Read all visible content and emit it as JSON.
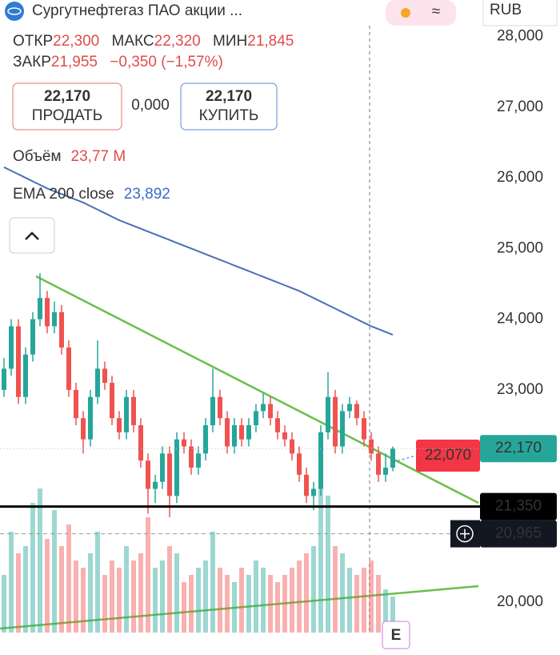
{
  "header": {
    "title": "Сургутнефтегаз ПАО акции ...",
    "currency": "RUB",
    "stats": [
      {
        "label": "ОТКР",
        "value": "22,300"
      },
      {
        "label": "МАКС",
        "value": "22,320"
      },
      {
        "label": "МИН",
        "value": "21,845"
      },
      {
        "label": "ЗАКР",
        "value": "21,955"
      }
    ],
    "change": "−0,350 (−1,57%)",
    "sell": {
      "price": "22,170",
      "label": "ПРОДАТЬ"
    },
    "spread": "0,000",
    "buy": {
      "price": "22,170",
      "label": "КУПИТЬ"
    },
    "volume": {
      "label": "Объём",
      "value": "23,77 M"
    },
    "ema": {
      "label": "EMA 200 close",
      "value": "23,892"
    },
    "badge": "E"
  },
  "chart_data": {
    "type": "candlestick",
    "up_color": "#26a69a",
    "down_color": "#ef5350",
    "ema_color": "#4a6fb5",
    "open": [
      23000,
      23300,
      23900,
      22900,
      23500,
      24000,
      24300,
      23900,
      24100,
      23600,
      23000,
      22600,
      22300,
      22900,
      23300,
      23100,
      22600,
      22400,
      22900,
      22500,
      22000,
      21600,
      21700,
      22100,
      21500,
      22300,
      22200,
      21900,
      22100,
      22500,
      22900,
      22600,
      22200,
      22500,
      22300,
      22500,
      22700,
      22800,
      22600,
      22400,
      22300,
      22100,
      21800,
      21500,
      21600,
      22400,
      22900,
      22200,
      22700,
      22800,
      22600,
      22300,
      22100,
      21800,
      21900
    ],
    "high": [
      23450,
      24000,
      24000,
      23600,
      24100,
      24650,
      24400,
      24250,
      24200,
      23700,
      23100,
      22700,
      23000,
      23700,
      23400,
      23200,
      22700,
      23000,
      23000,
      22600,
      22100,
      21800,
      22200,
      22200,
      22400,
      22400,
      22300,
      22200,
      22600,
      23300,
      23000,
      22700,
      22600,
      22600,
      22600,
      22800,
      22950,
      22900,
      22700,
      22500,
      22400,
      22200,
      21900,
      21700,
      22500,
      23250,
      23000,
      22800,
      22900,
      22850,
      22700,
      22400,
      22200,
      22100,
      22200
    ],
    "low": [
      22900,
      23200,
      22800,
      22800,
      23400,
      23900,
      23800,
      23800,
      23500,
      22900,
      22500,
      22100,
      22200,
      22800,
      23000,
      22500,
      22300,
      22300,
      22400,
      21900,
      21250,
      21400,
      21600,
      21200,
      21400,
      22100,
      21800,
      21800,
      22000,
      22400,
      22500,
      22100,
      22100,
      22200,
      22200,
      22400,
      22600,
      22500,
      22300,
      22200,
      22000,
      21700,
      21400,
      21300,
      21500,
      22300,
      22100,
      22100,
      22600,
      22500,
      22200,
      22000,
      21700,
      21700,
      21850
    ],
    "close": [
      23300,
      23900,
      22900,
      23500,
      24000,
      24300,
      23900,
      24100,
      23600,
      23000,
      22600,
      22300,
      22900,
      23300,
      23100,
      22600,
      22400,
      22900,
      22500,
      22000,
      21600,
      21700,
      22100,
      21500,
      22300,
      22200,
      21900,
      22100,
      22500,
      22900,
      22600,
      22200,
      22500,
      22300,
      22500,
      22700,
      22800,
      22600,
      22400,
      22300,
      22100,
      21800,
      21500,
      21600,
      22400,
      22900,
      22200,
      22700,
      22800,
      22600,
      22300,
      22100,
      21800,
      21900,
      22170
    ],
    "volume": [
      40,
      70,
      55,
      60,
      90,
      100,
      65,
      85,
      60,
      75,
      50,
      45,
      55,
      70,
      40,
      50,
      45,
      60,
      50,
      55,
      80,
      45,
      50,
      60,
      55,
      35,
      40,
      45,
      50,
      70,
      45,
      40,
      35,
      45,
      40,
      50,
      45,
      40,
      35,
      40,
      45,
      50,
      55,
      60,
      100,
      95,
      60,
      55,
      45,
      40,
      45,
      50,
      40,
      30,
      25
    ],
    "ema": [
      26150,
      26100,
      26050,
      26000,
      25950,
      25900,
      25850,
      25810,
      25770,
      25730,
      25690,
      25650,
      25600,
      25550,
      25500,
      25450,
      25400,
      25360,
      25320,
      25280,
      25240,
      25200,
      25160,
      25120,
      25080,
      25040,
      25000,
      24960,
      24920,
      24880,
      24840,
      24800,
      24760,
      24720,
      24680,
      24640,
      24600,
      24560,
      24520,
      24480,
      24440,
      24400,
      24350,
      24300,
      24250,
      24200,
      24150,
      24100,
      24050,
      24000,
      23950,
      23900,
      23860,
      23820,
      23780
    ],
    "ylim": [
      19250,
      28515
    ],
    "yticks": [
      {
        "value": 20000,
        "label": "20,000"
      },
      {
        "value": 23000,
        "label": "23,000"
      },
      {
        "value": 24000,
        "label": "24,000"
      },
      {
        "value": 25000,
        "label": "25,000"
      },
      {
        "value": 26000,
        "label": "26,000"
      },
      {
        "value": 27000,
        "label": "27,000"
      },
      {
        "value": 28000,
        "label": "28,000"
      }
    ],
    "price_labels": [
      {
        "value": 22070,
        "label": "22,070",
        "color": "#f23645"
      },
      {
        "value": 22170,
        "label": "22,170",
        "color": "#26a69a"
      },
      {
        "value": 21350,
        "label": "21,350",
        "color": "#000000"
      },
      {
        "value": 20965,
        "label": "20,965",
        "color": "#131722"
      }
    ]
  }
}
